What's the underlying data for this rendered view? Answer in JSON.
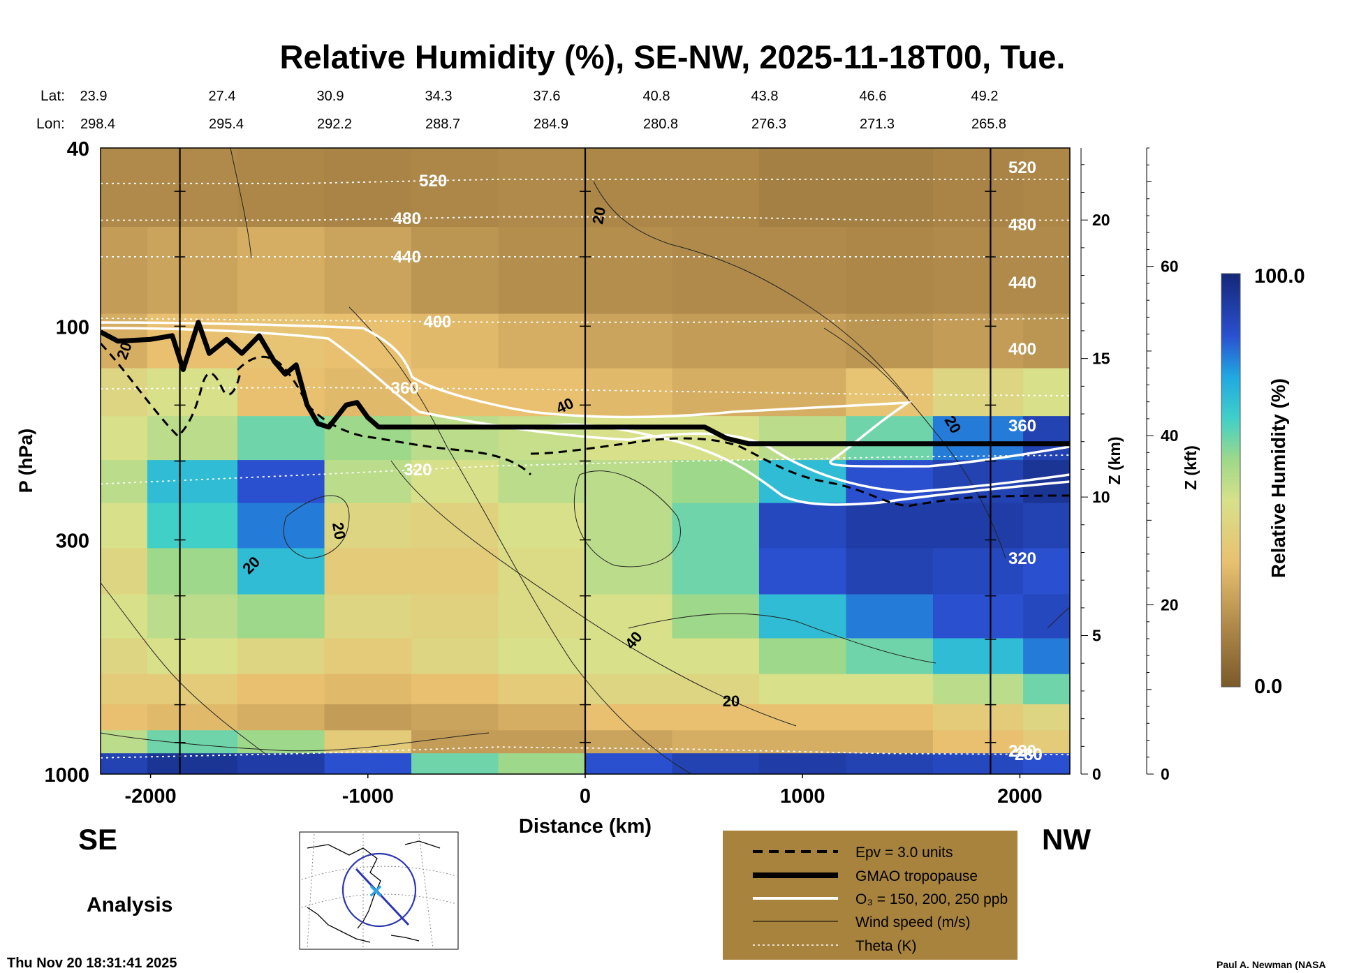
{
  "chart_data": {
    "type": "heatmap",
    "title": "Relative Humidity (%), SE-NW, 2025-11-18T00, Tue.",
    "xlabel": "Distance (km)",
    "ylabel": "P (hPa)",
    "z_label": "Z (km)",
    "zft_label": "Z (kft)",
    "colorbar_label": "Relative Humidity (%)",
    "colorbar_max": "100.0",
    "colorbar_min": "0.0",
    "xlim": [
      -2230,
      2230
    ],
    "ylim": [
      1000,
      40
    ],
    "x_ticks": [
      -2000,
      -1000,
      0,
      1000,
      2000
    ],
    "x_tick_labels": [
      "-2000",
      "-1000",
      "0",
      "1000",
      "2000"
    ],
    "p_ticks": [
      40,
      100,
      300,
      1000
    ],
    "p_tick_labels": [
      "40",
      "100",
      "300",
      "1000"
    ],
    "z_ticks": [
      0,
      5,
      10,
      15,
      20
    ],
    "z_tick_labels": [
      "0",
      "5",
      "10",
      "15",
      "20"
    ],
    "zft_ticks": [
      0,
      20,
      40,
      60
    ],
    "zft_tick_labels": [
      "0",
      "20",
      "40",
      "60"
    ],
    "lat_label": "Lat:",
    "lon_label": "Lon:",
    "lat_values": [
      "23.9",
      "27.4",
      "30.9",
      "34.3",
      "37.6",
      "40.8",
      "43.8",
      "46.6",
      "49.2"
    ],
    "lon_values": [
      "298.4",
      "295.4",
      "292.2",
      "288.7",
      "284.9",
      "280.8",
      "276.3",
      "271.3",
      "265.8"
    ],
    "theta_levels": [
      {
        "label": "520",
        "p": [
          48,
          48,
          47,
          47,
          47,
          47
        ],
        "at_x": -700
      },
      {
        "label": "480",
        "p": [
          58,
          58,
          57,
          57,
          58,
          58
        ],
        "at_x": -820
      },
      {
        "label": "440",
        "p": [
          70,
          70,
          70,
          70,
          70,
          70
        ],
        "at_x": -820
      },
      {
        "label": "400",
        "p": [
          96,
          97,
          98,
          98,
          97,
          96
        ],
        "at_x": -680
      },
      {
        "label": "360",
        "p": [
          138,
          137,
          138,
          140,
          142,
          143
        ],
        "at_x": -830
      },
      {
        "label": "320",
        "p": [
          225,
          215,
          205,
          200,
          196,
          194
        ],
        "at_x": -770
      },
      {
        "label": "280",
        "p": [
          920,
          900,
          870,
          880,
          900,
          905
        ],
        "at_x": 2040
      }
    ],
    "theta_right_labels": [
      "520",
      "480",
      "440",
      "400",
      "360",
      "320",
      "280"
    ],
    "tropopause": {
      "name": "GMAO tropopause",
      "x": [
        -2230,
        -2150,
        -2000,
        -1900,
        -1850,
        -1780,
        -1730,
        -1650,
        -1580,
        -1500,
        -1430,
        -1380,
        -1330,
        -1280,
        -1230,
        -1180,
        -1100,
        -1050,
        -1000,
        -950,
        -900,
        -600,
        -200,
        0,
        250,
        550,
        650,
        750,
        1000,
        1500,
        2000,
        2230
      ],
      "p": [
        103,
        108,
        107,
        105,
        125,
        98,
        115,
        107,
        115,
        105,
        120,
        128,
        122,
        150,
        165,
        168,
        150,
        148,
        160,
        168,
        168,
        168,
        168,
        168,
        168,
        168,
        178,
        183,
        183,
        183,
        183,
        183
      ]
    },
    "epv": {
      "name": "Epv = 3.0 units"
    },
    "ozone": {
      "name": "O₃ = 150, 200, 250 ppb"
    },
    "wind": {
      "name": "Wind speed (m/s)",
      "labels": [
        "20",
        "20",
        "20",
        "40",
        "40",
        "20",
        "20",
        "20"
      ]
    },
    "theta": {
      "name": "Theta (K)"
    },
    "rh_field": {
      "x": [
        -2230,
        -1800,
        -1400,
        -1000,
        -600,
        -200,
        200,
        600,
        1000,
        1400,
        1800,
        2230
      ],
      "p": [
        45,
        80,
        110,
        140,
        180,
        220,
        280,
        350,
        450,
        550,
        650,
        750,
        850,
        950
      ],
      "values": [
        [
          15,
          15,
          14,
          13,
          14,
          15,
          14,
          14,
          12,
          12,
          13,
          14
        ],
        [
          20,
          22,
          25,
          22,
          18,
          16,
          16,
          15,
          15,
          14,
          15,
          15
        ],
        [
          25,
          30,
          32,
          30,
          28,
          25,
          22,
          20,
          20,
          18,
          20,
          18
        ],
        [
          40,
          45,
          30,
          28,
          30,
          30,
          28,
          25,
          25,
          32,
          40,
          45
        ],
        [
          45,
          50,
          60,
          55,
          50,
          48,
          45,
          45,
          50,
          60,
          80,
          90
        ],
        [
          50,
          70,
          85,
          50,
          45,
          50,
          50,
          55,
          70,
          85,
          90,
          95
        ],
        [
          45,
          65,
          80,
          40,
          38,
          45,
          50,
          60,
          88,
          92,
          92,
          90
        ],
        [
          40,
          55,
          70,
          35,
          35,
          42,
          50,
          60,
          85,
          90,
          88,
          85
        ],
        [
          45,
          50,
          55,
          40,
          38,
          42,
          45,
          55,
          70,
          80,
          85,
          88
        ],
        [
          40,
          45,
          40,
          35,
          40,
          45,
          45,
          45,
          55,
          60,
          70,
          80
        ],
        [
          35,
          35,
          30,
          28,
          30,
          35,
          40,
          40,
          45,
          45,
          50,
          60
        ],
        [
          30,
          28,
          25,
          20,
          22,
          25,
          30,
          30,
          30,
          30,
          35,
          40
        ],
        [
          50,
          60,
          55,
          35,
          20,
          20,
          22,
          25,
          25,
          25,
          30,
          35
        ],
        [
          90,
          95,
          92,
          85,
          60,
          55,
          85,
          90,
          92,
          90,
          88,
          85
        ]
      ]
    }
  },
  "labels": {
    "se": "SE",
    "nw": "NW",
    "analysis": "Analysis",
    "timestamp": "Thu Nov 20 18:31:41 2025",
    "credit": "Paul A. Newman (NASA"
  },
  "colors": {
    "legend_bg": "#a8833e",
    "dry": "#7a5a2a",
    "moist": "#1a2a9a"
  },
  "map_inset": {
    "icon": "globe-section-map"
  }
}
